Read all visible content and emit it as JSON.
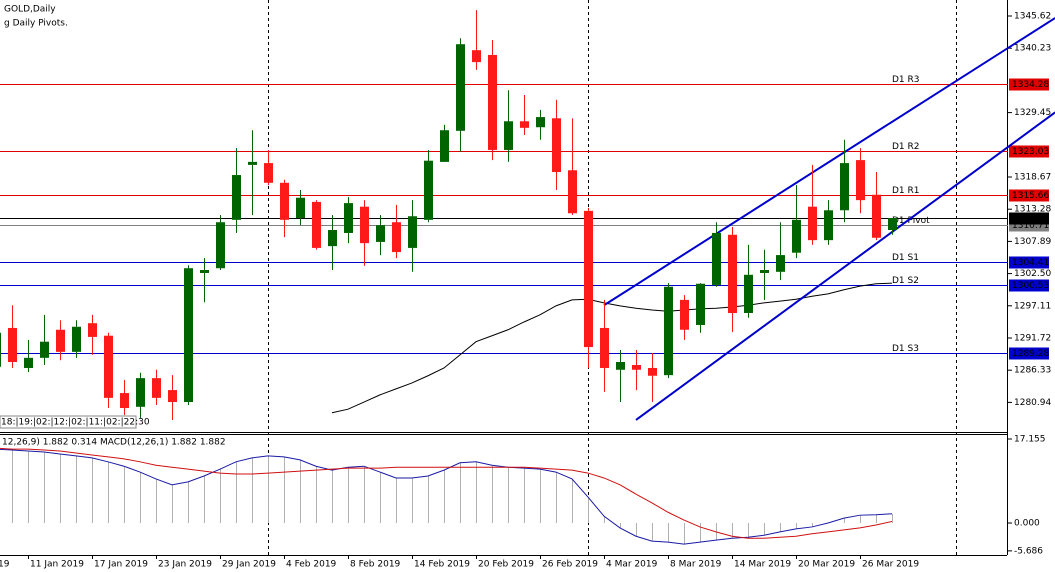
{
  "chart_data": {
    "type": "candlestick",
    "title": "GOLD,Daily",
    "subtitle": "g Daily Pivots.",
    "annotation": "18:|19:|02:|12:|02:|11:|02:|22:30",
    "categories": [
      "19",
      null,
      "11 Jan 2019",
      null,
      null,
      null,
      "17 Jan 2019",
      null,
      null,
      null,
      "23 Jan 2019",
      null,
      null,
      null,
      "29 Jan 2019",
      null,
      null,
      null,
      "4 Feb 2019",
      null,
      null,
      null,
      "8 Feb 2019",
      null,
      null,
      null,
      "14 Feb 2019",
      null,
      null,
      null,
      "20 Feb 2019",
      null,
      null,
      null,
      "26 Feb 2019",
      null,
      null,
      null,
      "4 Mar 2019",
      null,
      null,
      null,
      "8 Mar 2019",
      null,
      null,
      null,
      "14 Mar 2019",
      null,
      null,
      null,
      "20 Mar 2019",
      null,
      null,
      null,
      "26 Mar 2019",
      null,
      null
    ],
    "open": [
      1286.9,
      1293.4,
      1286.7,
      1288.4,
      1293.1,
      1289.4,
      1294.2,
      1292.1,
      1282.5,
      1280.2,
      1285.0,
      1283.0,
      1281.0,
      1302.6,
      1303.4,
      1311.5,
      1320.7,
      1321.0,
      1317.7,
      1311.8,
      1314.5,
      1307.1,
      1309.3,
      1313.7,
      1307.8,
      1311.1,
      1306.8,
      1311.5,
      1321.2,
      1326.4,
      1339.9,
      1339.1,
      1323.2,
      1328.0,
      1327.0,
      1328.5,
      1319.8,
      1313.0,
      1293.4,
      1286.4,
      1287.2,
      1286.7,
      1285.5,
      1298.1,
      1293.9,
      1300.6,
      1309.0,
      1295.9,
      1302.6,
      1302.8,
      1306.0,
      1313.7,
      1308.1,
      1313.1,
      1321.5,
      1315.7,
      1309.8
    ],
    "high": [
      1294.7,
      1297.2,
      1291.4,
      1295.6,
      1294.7,
      1294.7,
      1295.6,
      1292.6,
      1284.7,
      1285.9,
      1286.4,
      1285.5,
      1303.9,
      1305.1,
      1312.3,
      1323.5,
      1326.5,
      1323.2,
      1318.2,
      1316.5,
      1314.8,
      1312.3,
      1315.3,
      1314.8,
      1312.3,
      1314.0,
      1314.8,
      1323.2,
      1327.4,
      1341.9,
      1346.6,
      1341.6,
      1333.2,
      1332.4,
      1329.9,
      1331.6,
      1328.5,
      1313.5,
      1298.1,
      1289.7,
      1289.7,
      1289.2,
      1300.9,
      1298.9,
      1300.9,
      1311.1,
      1310.3,
      1307.3,
      1306.5,
      1311.1,
      1317.3,
      1320.7,
      1314.8,
      1324.9,
      1323.5,
      1319.5,
      1311.8
    ],
    "low": [
      1284.7,
      1286.7,
      1286.0,
      1287.2,
      1288.0,
      1288.4,
      1288.9,
      1280.0,
      1278.8,
      1278.3,
      1280.5,
      1278.0,
      1280.5,
      1297.7,
      1303.1,
      1309.3,
      1312.3,
      1317.3,
      1308.6,
      1310.6,
      1306.5,
      1303.1,
      1307.6,
      1303.8,
      1305.6,
      1305.1,
      1302.8,
      1311.1,
      1321.2,
      1322.9,
      1336.6,
      1321.5,
      1321.2,
      1325.7,
      1324.9,
      1316.5,
      1312.3,
      1286.7,
      1282.7,
      1281.0,
      1283.0,
      1281.0,
      1285.0,
      1291.4,
      1292.6,
      1300.3,
      1292.7,
      1295.1,
      1298.1,
      1301.4,
      1305.1,
      1307.3,
      1307.3,
      1311.1,
      1312.6,
      1308.1,
      1309.0
    ],
    "close": [
      1292.6,
      1287.7,
      1288.4,
      1291.1,
      1289.4,
      1293.6,
      1291.9,
      1281.7,
      1280.0,
      1285.0,
      1281.7,
      1281.0,
      1303.4,
      1303.1,
      1311.1,
      1319.0,
      1321.2,
      1317.7,
      1311.5,
      1315.2,
      1306.8,
      1309.8,
      1314.3,
      1307.6,
      1310.6,
      1306.1,
      1312.1,
      1321.4,
      1326.5,
      1340.9,
      1337.9,
      1323.2,
      1328.0,
      1326.9,
      1328.7,
      1319.5,
      1312.6,
      1290.2,
      1286.7,
      1287.7,
      1286.4,
      1285.4,
      1300.3,
      1293.1,
      1300.8,
      1309.3,
      1295.9,
      1302.3,
      1303.1,
      1305.6,
      1311.5,
      1308.1,
      1313.1,
      1321.0,
      1314.8,
      1308.5,
      1311.8
    ],
    "up_color": "#006400",
    "down_color": "#ff1a1a",
    "moving_average": {
      "color": "#000000",
      "values": [
        null,
        null,
        null,
        null,
        null,
        null,
        null,
        null,
        null,
        null,
        null,
        null,
        null,
        null,
        null,
        null,
        null,
        null,
        null,
        null,
        null,
        1279.2,
        1279.8,
        1281.0,
        1282.2,
        1283.2,
        1284.2,
        1285.4,
        1286.7,
        1288.9,
        1291.1,
        1292.1,
        1293.1,
        1294.4,
        1295.6,
        1297.1,
        1298.1,
        1298.2,
        1297.6,
        1297.1,
        1296.7,
        1296.4,
        1296.2,
        1296.4,
        1296.6,
        1296.7,
        1296.9,
        1297.2,
        1297.6,
        1297.9,
        1298.2,
        1298.7,
        1299.1,
        1299.8,
        1300.4,
        1300.8,
        1300.9
      ]
    },
    "trendlines": [
      {
        "color": "#0000cc",
        "x": [
          38,
          66.2
        ],
        "y": [
          1297.2,
          1345.3
        ]
      },
      {
        "color": "#0000cc",
        "x": [
          40,
          66.2
        ],
        "y": [
          1278.0,
          1329.5
        ]
      }
    ],
    "pivots": [
      {
        "label": "D1 R3",
        "value": 1334.28,
        "color": "#e00000"
      },
      {
        "label": "D1 R2",
        "value": 1323.03,
        "color": "#e00000"
      },
      {
        "label": "D1 R1",
        "value": 1315.66,
        "color": "#e00000"
      },
      {
        "label": "D1 Pivot",
        "value": 1310.71,
        "color": "#808080"
      },
      {
        "label": "D1 S1",
        "value": 1304.41,
        "color": "#0000cc"
      },
      {
        "label": "D1 S2",
        "value": 1300.53,
        "color": "#0000cc"
      },
      {
        "label": "D1 S3",
        "value": 1289.28,
        "color": "#0000cc"
      }
    ],
    "last_price": 1311.78,
    "ylim": [
      1275.9,
      1348.3
    ],
    "yticks": [
      1345.62,
      1340.23,
      1329.45,
      1318.67,
      1313.28,
      1307.89,
      {
        "value": 1302.5,
        "label": "1302.50"
      },
      1297.11,
      1291.72,
      1286.33,
      1280.94
    ],
    "macd": {
      "label": "12,26,9) 1.882 0.314 MACD(12,26,1) 1.882 1.882",
      "main_color": "#1a1aa6",
      "signal_color": "#d01010",
      "histogram_color": "#b0b0b0",
      "main": [
        15.1,
        14.9,
        14.7,
        14.5,
        14.1,
        13.7,
        13.3,
        12.5,
        11.6,
        10.4,
        9.0,
        7.8,
        8.4,
        9.6,
        11.0,
        12.5,
        13.3,
        13.7,
        13.5,
        12.9,
        11.6,
        10.8,
        11.4,
        11.6,
        10.4,
        9.2,
        9.2,
        9.6,
        10.8,
        12.3,
        12.5,
        11.8,
        11.4,
        11.2,
        11.0,
        10.4,
        9.0,
        5.3,
        1.4,
        -1.0,
        -2.7,
        -3.7,
        -3.9,
        -4.3,
        -3.9,
        -3.5,
        -3.1,
        -2.9,
        -2.5,
        -1.8,
        -1.2,
        -0.8,
        0.0,
        1.0,
        1.6,
        1.7,
        1.882
      ],
      "signal": [
        15.3,
        15.1,
        15.1,
        14.9,
        14.7,
        14.3,
        13.9,
        13.5,
        13.1,
        12.5,
        11.8,
        11.4,
        11.0,
        10.6,
        10.2,
        10.0,
        10.0,
        10.2,
        10.4,
        10.6,
        10.8,
        11.0,
        11.2,
        11.2,
        11.2,
        11.4,
        11.4,
        11.4,
        11.4,
        11.4,
        11.4,
        11.4,
        11.4,
        11.4,
        11.2,
        11.0,
        10.8,
        10.2,
        9.2,
        7.8,
        5.9,
        4.1,
        2.2,
        0.6,
        -0.8,
        -1.8,
        -2.7,
        -3.1,
        -3.1,
        -2.9,
        -2.7,
        -2.2,
        -1.8,
        -1.4,
        -1.0,
        -0.4,
        0.314
      ],
      "ylim": [
        -6.53,
        17.77
      ],
      "yticks": [
        17.155,
        {
          "value": 0,
          "label": "0.000"
        },
        -5.686
      ]
    }
  }
}
